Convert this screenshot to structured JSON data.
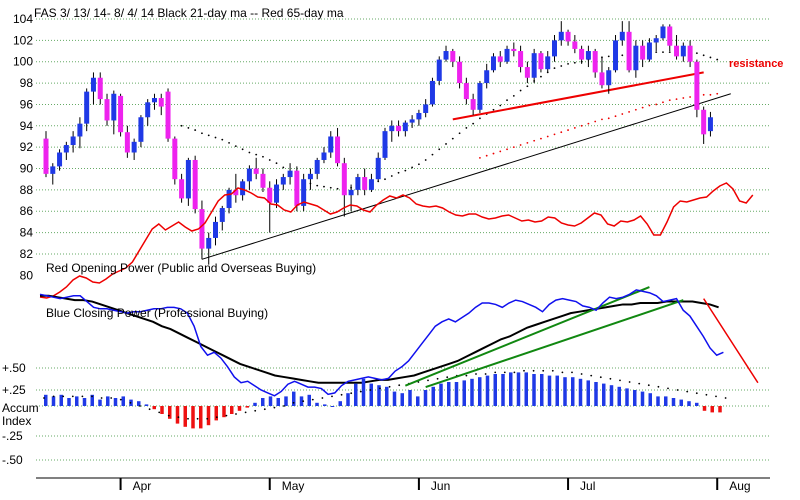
{
  "chart_data": {
    "type": "candlestick",
    "title": "FAS   3/ 13/ 14-  8/ 4/ 14      Black 21-day ma  --  Red 65-day ma",
    "colors": {
      "up": "#1f39e6",
      "down": "#ee22ee",
      "ma21": "#000000",
      "ma65": "#ee0000",
      "red_power": "#ee0000",
      "blue_power": "#1010ee",
      "trend_green": "#118811",
      "accum_pos": "#1f39e6",
      "accum_neg": "#ee1111",
      "grid": "#66aa66"
    },
    "price_axis": {
      "ylim": [
        78,
        104.4
      ],
      "ticks": [
        82,
        84,
        86,
        88,
        90,
        92,
        94,
        96,
        98,
        100,
        102,
        104
      ],
      "labels": [
        "82",
        "84",
        "86",
        "88",
        "90",
        "92",
        "94",
        "96",
        "98",
        "100",
        "102",
        "104"
      ],
      "extra_label": "80"
    },
    "month_labels": [
      "Apr",
      "May",
      "Jun",
      "Jul",
      "Aug"
    ],
    "month_ticks": [
      11,
      33,
      55,
      77,
      99
    ],
    "candles": [
      [
        92.8,
        93.5,
        89.2,
        89.5
      ],
      [
        89.5,
        90.5,
        88.5,
        90.2
      ],
      [
        90.2,
        91.8,
        89.8,
        91.5
      ],
      [
        91.5,
        92.5,
        90.8,
        92.2
      ],
      [
        92.2,
        93.5,
        91.5,
        93.0
      ],
      [
        93.0,
        94.8,
        91.9,
        94.2
      ],
      [
        94.2,
        97.5,
        93.5,
        97.2
      ],
      [
        97.2,
        99.0,
        96.0,
        98.5
      ],
      [
        98.5,
        99.0,
        96.0,
        96.5
      ],
      [
        96.5,
        97.0,
        94.0,
        94.5
      ],
      [
        94.5,
        97.3,
        93.2,
        97.0
      ],
      [
        96.8,
        97.0,
        93.0,
        93.4
      ],
      [
        93.4,
        94.0,
        91.0,
        91.5
      ],
      [
        91.5,
        92.8,
        90.8,
        92.5
      ],
      [
        92.5,
        95.0,
        92.0,
        94.8
      ],
      [
        94.8,
        96.5,
        94.0,
        96.2
      ],
      [
        96.2,
        97.0,
        95.5,
        96.6
      ],
      [
        96.6,
        97.0,
        95.0,
        95.8
      ],
      [
        97.2,
        97.5,
        92.5,
        92.8
      ],
      [
        92.8,
        93.0,
        88.5,
        89.0
      ],
      [
        89.0,
        89.5,
        86.8,
        87.2
      ],
      [
        87.2,
        91.0,
        86.5,
        90.8
      ],
      [
        90.8,
        91.2,
        85.8,
        86.2
      ],
      [
        86.2,
        87.0,
        81.5,
        82.5
      ],
      [
        82.5,
        84.0,
        81.0,
        83.5
      ],
      [
        83.5,
        85.5,
        82.8,
        85.0
      ],
      [
        85.0,
        86.5,
        84.2,
        86.3
      ],
      [
        86.3,
        88.2,
        85.8,
        88.0
      ],
      [
        88.0,
        89.5,
        86.8,
        87.5
      ],
      [
        87.5,
        89.0,
        87.0,
        88.8
      ],
      [
        88.8,
        90.3,
        88.0,
        90.0
      ],
      [
        90.0,
        91.0,
        89.0,
        89.5
      ],
      [
        89.5,
        90.0,
        87.8,
        88.2
      ],
      [
        88.2,
        88.8,
        84.0,
        86.8
      ],
      [
        86.8,
        89.0,
        86.3,
        88.5
      ],
      [
        88.5,
        89.5,
        88.0,
        89.2
      ],
      [
        89.2,
        90.5,
        88.5,
        89.8
      ],
      [
        89.8,
        90.2,
        86.0,
        86.5
      ],
      [
        86.5,
        89.5,
        86.0,
        89.0
      ],
      [
        89.0,
        90.0,
        88.0,
        89.5
      ],
      [
        89.5,
        91.0,
        89.0,
        90.8
      ],
      [
        90.8,
        92.0,
        90.5,
        91.5
      ],
      [
        91.5,
        93.5,
        91.0,
        93.0
      ],
      [
        93.0,
        93.8,
        90.2,
        90.5
      ],
      [
        90.5,
        91.0,
        85.5,
        87.5
      ],
      [
        87.5,
        88.5,
        86.0,
        88.0
      ],
      [
        88.0,
        89.5,
        87.5,
        89.2
      ],
      [
        89.2,
        90.0,
        87.5,
        88.0
      ],
      [
        88.0,
        89.5,
        87.8,
        89.0
      ],
      [
        89.0,
        91.5,
        88.8,
        91.0
      ],
      [
        91.0,
        93.8,
        90.8,
        93.5
      ],
      [
        93.5,
        94.5,
        92.5,
        94.0
      ],
      [
        94.0,
        94.5,
        93.0,
        93.5
      ],
      [
        93.5,
        94.5,
        93.0,
        94.3
      ],
      [
        94.3,
        95.0,
        93.8,
        94.6
      ],
      [
        94.6,
        95.5,
        94.0,
        95.2
      ],
      [
        95.2,
        96.5,
        94.8,
        96.0
      ],
      [
        96.0,
        98.5,
        95.8,
        98.2
      ],
      [
        98.2,
        100.5,
        97.8,
        100.2
      ],
      [
        100.2,
        101.5,
        100.0,
        101.0
      ],
      [
        101.0,
        101.2,
        99.5,
        100.0
      ],
      [
        100.0,
        100.5,
        97.5,
        98.0
      ],
      [
        98.0,
        98.5,
        96.0,
        96.5
      ],
      [
        96.5,
        97.0,
        95.0,
        95.5
      ],
      [
        95.5,
        98.2,
        95.2,
        98.0
      ],
      [
        98.0,
        99.8,
        97.5,
        99.2
      ],
      [
        99.2,
        100.8,
        99.0,
        100.5
      ],
      [
        100.5,
        101.0,
        99.5,
        100.0
      ],
      [
        100.0,
        101.5,
        99.8,
        101.2
      ],
      [
        101.2,
        101.8,
        100.5,
        101.0
      ],
      [
        101.0,
        101.5,
        99.0,
        99.5
      ],
      [
        99.5,
        100.0,
        98.0,
        98.5
      ],
      [
        98.5,
        101.2,
        98.0,
        100.8
      ],
      [
        100.8,
        101.0,
        99.0,
        99.3
      ],
      [
        99.3,
        101.0,
        99.0,
        100.5
      ],
      [
        100.5,
        102.5,
        100.0,
        102.0
      ],
      [
        102.0,
        103.8,
        101.5,
        102.8
      ],
      [
        102.8,
        103.0,
        101.5,
        101.9
      ],
      [
        101.9,
        102.5,
        100.8,
        101.2
      ],
      [
        101.2,
        101.5,
        99.8,
        100.2
      ],
      [
        100.2,
        101.5,
        99.5,
        101.0
      ],
      [
        101.0,
        101.2,
        98.5,
        99.0
      ],
      [
        99.0,
        100.5,
        97.5,
        97.8
      ],
      [
        97.8,
        99.5,
        97.0,
        99.2
      ],
      [
        99.2,
        102.5,
        99.0,
        102.0
      ],
      [
        102.0,
        103.8,
        101.5,
        102.8
      ],
      [
        102.8,
        103.8,
        99.0,
        99.2
      ],
      [
        99.2,
        102.0,
        98.5,
        101.5
      ],
      [
        101.5,
        102.0,
        99.5,
        100.2
      ],
      [
        100.2,
        102.2,
        100.0,
        101.8
      ],
      [
        101.8,
        102.5,
        101.0,
        102.2
      ],
      [
        102.2,
        103.5,
        102.0,
        103.3
      ],
      [
        103.3,
        103.5,
        101.0,
        101.5
      ],
      [
        101.5,
        102.5,
        100.2,
        100.5
      ],
      [
        100.5,
        101.8,
        100.0,
        101.5
      ],
      [
        101.5,
        102.0,
        99.5,
        100.0
      ],
      [
        100.0,
        100.2,
        94.8,
        95.5
      ],
      [
        95.5,
        95.8,
        92.3,
        93.2
      ],
      [
        93.5,
        95.3,
        93.0,
        94.8
      ]
    ],
    "ma21": [
      null,
      null,
      null,
      null,
      null,
      null,
      null,
      null,
      null,
      null,
      null,
      null,
      null,
      null,
      null,
      null,
      null,
      null,
      null,
      null,
      94.0,
      93.8,
      93.6,
      93.3,
      93.1,
      92.9,
      92.7,
      92.4,
      92.1,
      91.8,
      91.5,
      91.3,
      91.1,
      90.8,
      90.5,
      90.1,
      89.6,
      89.2,
      88.8,
      88.6,
      88.4,
      88.3,
      88.2,
      88.1,
      88.1,
      88.2,
      88.3,
      88.4,
      88.6,
      88.8,
      89.0,
      89.3,
      89.6,
      89.8,
      90.1,
      90.4,
      90.8,
      91.3,
      91.8,
      92.3,
      92.8,
      93.3,
      93.8,
      94.2,
      94.7,
      95.1,
      95.5,
      95.9,
      96.4,
      96.8,
      97.3,
      97.7,
      98.2,
      98.6,
      99.0,
      99.4,
      99.6,
      99.8,
      99.9,
      100.0,
      100.2,
      100.3,
      100.4,
      100.5,
      100.6,
      100.6,
      100.7,
      100.7,
      100.8,
      100.8,
      100.9,
      100.9,
      100.9,
      101.0,
      101.0,
      100.9,
      100.8,
      100.6,
      100.4,
      100.2
    ],
    "ma65": [
      null,
      null,
      null,
      null,
      null,
      null,
      null,
      null,
      null,
      null,
      null,
      null,
      null,
      null,
      null,
      null,
      null,
      null,
      null,
      null,
      null,
      null,
      null,
      null,
      null,
      null,
      null,
      null,
      null,
      null,
      null,
      null,
      null,
      null,
      null,
      null,
      null,
      null,
      null,
      null,
      null,
      null,
      null,
      null,
      null,
      null,
      null,
      null,
      null,
      null,
      null,
      null,
      null,
      null,
      null,
      null,
      null,
      null,
      null,
      null,
      null,
      null,
      null,
      null,
      91.0,
      91.2,
      91.4,
      91.6,
      91.8,
      92.0,
      92.2,
      92.4,
      92.6,
      92.8,
      93.0,
      93.2,
      93.4,
      93.6,
      93.8,
      94.0,
      94.2,
      94.4,
      94.6,
      94.7,
      94.9,
      95.1,
      95.3,
      95.5,
      95.7,
      95.9,
      96.0,
      96.2,
      96.4,
      96.5,
      96.6,
      96.7,
      96.8,
      96.9,
      96.9,
      97.0
    ],
    "resistance_line": {
      "label": "resistance",
      "from": [
        60,
        94.6
      ],
      "to": [
        97,
        99.0
      ]
    },
    "support_line": {
      "from": [
        23,
        81.5
      ],
      "to": [
        101,
        97.0
      ]
    },
    "red_opening_power": {
      "label": "Red Opening Power (Public and Overseas Buying)",
      "values": [
        77.5,
        77.4,
        77.6,
        78.0,
        78.5,
        79.2,
        79.6,
        79.4,
        79.0,
        78.9,
        79.3,
        79.8,
        80.1,
        80.4,
        81.0,
        82.1,
        83.2,
        84.3,
        84.8,
        84.2,
        84.6,
        85.0,
        84.5,
        84.1,
        84.3,
        84.9,
        86.0,
        87.1,
        87.7,
        87.8,
        88.4,
        88.2,
        87.9,
        87.5,
        87.4,
        86.8,
        86.7,
        86.2,
        86.0,
        86.7,
        87.0,
        86.8,
        86.6,
        86.2,
        85.8,
        86.0,
        86.4,
        86.7,
        86.6,
        86.2,
        86.0,
        86.7,
        87.2,
        87.6,
        87.4,
        87.7,
        87.4,
        86.8,
        86.6,
        86.5,
        86.6,
        86.4,
        86.0,
        85.7,
        85.6,
        85.8,
        85.8,
        85.5,
        85.3,
        85.4,
        85.6,
        85.7,
        85.4,
        85.1,
        85.2,
        85.0,
        85.1,
        85.5,
        85.4,
        84.9,
        84.7,
        84.6,
        84.9,
        85.4,
        85.9,
        85.7,
        84.8,
        84.6,
        85.1,
        85.0,
        85.2,
        85.6,
        84.8,
        83.7,
        83.7,
        85.0,
        86.5,
        87.1,
        87.0,
        87.2,
        87.4,
        87.5,
        88.1,
        88.6,
        88.9,
        88.3,
        87.1,
        86.9,
        87.7
      ]
    },
    "blue_closing_power": {
      "label": "Blue Closing Power (Professional Buying)",
      "values": [
        1.01,
        1.0,
        0.99,
        0.98,
        0.99,
        1.0,
        1.0,
        0.96,
        0.92,
        0.91,
        0.91,
        0.9,
        0.89,
        0.88,
        0.89,
        0.89,
        0.9,
        0.91,
        0.91,
        0.92,
        0.92,
        0.91,
        0.88,
        0.79,
        0.65,
        0.59,
        0.61,
        0.57,
        0.51,
        0.44,
        0.4,
        0.41,
        0.38,
        0.35,
        0.33,
        0.31,
        0.34,
        0.39,
        0.41,
        0.39,
        0.37,
        0.37,
        0.36,
        0.32,
        0.33,
        0.38,
        0.41,
        0.42,
        0.43,
        0.44,
        0.43,
        0.42,
        0.43,
        0.48,
        0.51,
        0.55,
        0.61,
        0.67,
        0.73,
        0.79,
        0.82,
        0.84,
        0.82,
        0.85,
        0.88,
        0.92,
        0.95,
        0.95,
        0.94,
        0.92,
        0.95,
        0.97,
        0.96,
        0.94,
        0.92,
        0.89,
        0.94,
        0.97,
        0.98,
        0.97,
        0.96,
        0.93,
        0.92,
        0.9,
        0.95,
        0.99,
        0.98,
        0.99,
        1.01,
        1.04,
        1.03,
        1.02,
        1.0,
        0.96,
        0.97,
        0.98,
        0.9,
        0.86,
        0.79,
        0.72,
        0.64,
        0.59,
        0.61
      ]
    },
    "blue_black_ma": [
      1.0,
      1.0,
      0.99,
      0.98,
      0.97,
      0.97,
      0.96,
      0.94,
      0.92,
      0.9,
      0.88,
      0.86,
      0.84,
      0.82,
      0.79,
      0.77,
      0.74,
      0.71,
      0.68,
      0.65,
      0.62,
      0.59,
      0.56,
      0.53,
      0.51,
      0.49,
      0.47,
      0.45,
      0.44,
      0.43,
      0.42,
      0.41,
      0.4,
      0.4,
      0.4,
      0.4,
      0.4,
      0.4,
      0.41,
      0.42,
      0.42,
      0.43,
      0.44,
      0.45,
      0.47,
      0.49,
      0.51,
      0.53,
      0.55,
      0.58,
      0.61,
      0.64,
      0.67,
      0.7,
      0.72,
      0.75,
      0.78,
      0.8,
      0.82,
      0.84,
      0.86,
      0.88,
      0.89,
      0.9,
      0.91,
      0.92,
      0.93,
      0.94,
      0.94,
      0.95,
      0.95,
      0.95,
      0.96,
      0.96,
      0.96,
      0.96,
      0.95,
      0.94,
      0.92
    ],
    "green_trendlines": [
      {
        "from": [
          53,
          0.38
        ],
        "to": [
          89,
          1.06
        ]
      },
      {
        "from": [
          56,
          0.37
        ],
        "to": [
          94,
          0.97
        ]
      }
    ],
    "red_downtrend": {
      "from": [
        97,
        0.98
      ],
      "to": [
        105,
        0.4
      ]
    },
    "accum_index": {
      "label_top": "Accum",
      "label_bottom": "Index",
      "axis_labels": [
        "+.50",
        "+.25",
        "-.25",
        "-.50"
      ],
      "axis_values": [
        0.5,
        0.25,
        -0.25,
        -0.5
      ],
      "values": [
        0.07,
        0.06,
        0.07,
        0.05,
        0.06,
        0.05,
        0.07,
        0.04,
        0.06,
        0.05,
        0.06,
        0.04,
        0.03,
        0.01,
        -0.02,
        -0.05,
        -0.08,
        -0.11,
        -0.13,
        -0.14,
        -0.14,
        -0.12,
        -0.09,
        -0.07,
        -0.05,
        -0.03,
        -0.01,
        0.02,
        0.05,
        0.06,
        0.05,
        0.06,
        0.09,
        0.06,
        0.07,
        0.02,
        0.01,
        0.0,
        0.03,
        0.08,
        0.14,
        0.17,
        0.14,
        0.13,
        0.12,
        0.09,
        0.08,
        0.1,
        0.06,
        0.1,
        0.12,
        0.14,
        0.15,
        0.15,
        0.16,
        0.17,
        0.18,
        0.19,
        0.2,
        0.2,
        0.21,
        0.21,
        0.21,
        0.2,
        0.2,
        0.19,
        0.19,
        0.18,
        0.18,
        0.17,
        0.16,
        0.15,
        0.14,
        0.13,
        0.12,
        0.11,
        0.1,
        0.09,
        0.08,
        0.06,
        0.06,
        0.05,
        0.04,
        0.03,
        0.02,
        -0.03,
        -0.04,
        -0.04
      ],
      "ma_dotted": [
        0.05,
        0.06,
        0.06,
        0.06,
        0.06,
        0.06,
        0.05,
        0.05,
        0.04,
        0.02,
        0.0,
        -0.02,
        -0.04,
        -0.06,
        -0.07,
        -0.08,
        -0.08,
        -0.08,
        -0.07,
        -0.06,
        -0.05,
        -0.04,
        -0.03,
        -0.02,
        -0.01,
        0.0,
        0.02,
        0.03,
        0.04,
        0.05,
        0.06,
        0.07,
        0.08,
        0.09,
        0.1,
        0.11,
        0.12,
        0.13,
        0.14,
        0.15,
        0.16,
        0.17,
        0.18,
        0.19,
        0.19,
        0.2,
        0.2,
        0.21,
        0.21,
        0.21,
        0.22,
        0.22,
        0.22,
        0.22,
        0.21,
        0.21,
        0.2,
        0.19,
        0.18,
        0.17,
        0.16,
        0.15,
        0.14,
        0.13,
        0.12,
        0.11,
        0.1,
        0.09,
        0.08,
        0.07,
        0.06,
        0.05
      ]
    }
  }
}
